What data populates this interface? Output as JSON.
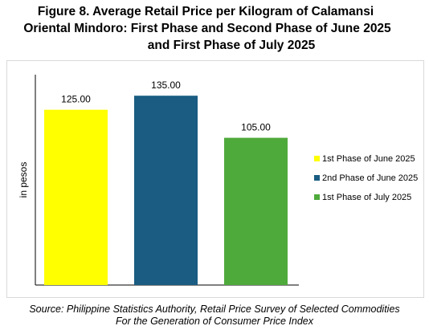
{
  "title": {
    "line1": "Figure 8. Average Retail Price per Kilogram of Calamansi",
    "line2": "Oriental Mindoro: First Phase and Second Phase of June 2025",
    "line3": "and First Phase of July 2025"
  },
  "source": {
    "line1": "Source: Philippine Statistics Authority, Retail Price Survey of Selected Commodities",
    "line2": "For the Generation of Consumer Price Index"
  },
  "chart_data": {
    "type": "bar",
    "title": "Figure 8. Average Retail Price per Kilogram of Calamansi Oriental Mindoro: First Phase and Second Phase of June 2025 and First Phase of July 2025",
    "xlabel": "",
    "ylabel": "in pesos",
    "ylim": [
      0,
      150
    ],
    "grid": false,
    "legend": "right",
    "categories": [
      "1st Phase of June 2025",
      "2nd Phase of June 2025",
      "1st Phase of July 2025"
    ],
    "series": [
      {
        "values": [
          125.0,
          135.0,
          105.0
        ],
        "labels": [
          "125.00",
          "135.00",
          "105.00"
        ],
        "colors": [
          "#ffff00",
          "#1a5c82",
          "#4faa3c"
        ]
      }
    ],
    "legend_entries": [
      "1st Phase of June 2025",
      "2nd Phase of June 2025",
      "1st Phase of July 2025"
    ]
  }
}
